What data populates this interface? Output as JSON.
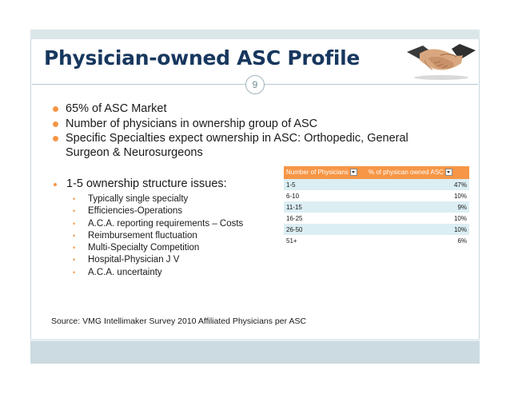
{
  "slide": {
    "title": "Physician-owned ASC Profile",
    "page_number": "9",
    "accent_color": "#f79646",
    "title_color": "#17375e"
  },
  "bullets": [
    "65% of ASC Market",
    "Number of physicians in ownership group of ASC",
    "Specific Specialties expect ownership in ASC: Orthopedic, General Surgeon & Neurosurgeons"
  ],
  "issues": {
    "heading": "1-5 ownership structure issues:",
    "items": [
      "Typically single specialty",
      "Efficiencies-Operations",
      "A.C.A. reporting requirements – Costs",
      "Reimbursement fluctuation",
      "Multi-Specialty Competition",
      "Hospital-Physician J V",
      "A.C.A. uncertainty"
    ]
  },
  "table": {
    "headers": [
      "Number of Physicians",
      "% of physican owned ASC"
    ],
    "rows": [
      [
        "1-5",
        "47%"
      ],
      [
        "6-10",
        "10%"
      ],
      [
        "11-15",
        "9%"
      ],
      [
        "16-25",
        "10%"
      ],
      [
        "26-50",
        "10%"
      ],
      [
        "51+",
        "6%"
      ]
    ]
  },
  "source": "Source: VMG Intellimaker Survey 2010 Affiliated Physicians per ASC",
  "icons": {
    "handshake": "handshake-icon"
  }
}
